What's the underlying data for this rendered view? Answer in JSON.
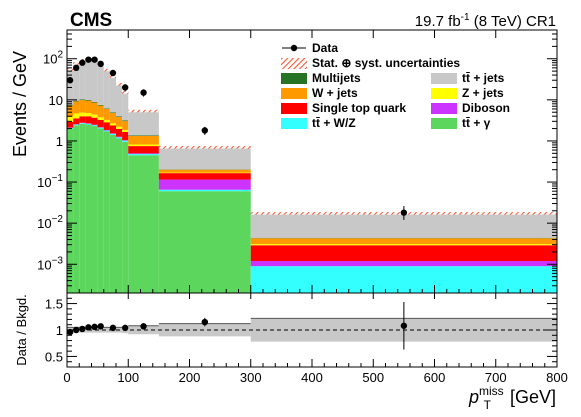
{
  "chart_data": {
    "type": "stacked-histogram-with-ratio",
    "experiment_label": "CMS",
    "lumi_label": "19.7 fb",
    "lumi_exponent": "-1",
    "lumi_suffix": " (8 TeV) CR1",
    "main_panel": {
      "ylabel": "Events / GeV",
      "yscale": "log",
      "ylim": [
        0.0002,
        500
      ],
      "y_tick_labels": [
        {
          "base": "10",
          "exp": "2",
          "value": 100
        },
        {
          "base": "10",
          "exp": "",
          "value": 10
        },
        {
          "base": "1",
          "exp": "",
          "value": 1
        },
        {
          "base": "10",
          "exp": "−1",
          "value": 0.1
        },
        {
          "base": "10",
          "exp": "−2",
          "value": 0.01
        },
        {
          "base": "10",
          "exp": "−3",
          "value": 0.001
        }
      ]
    },
    "x_axis": {
      "label_main": "p",
      "label_sub": "T",
      "label_sup": "miss",
      "label_unit": " [GeV]",
      "xlim": [
        0,
        800
      ],
      "ticks": [
        0,
        100,
        200,
        300,
        400,
        500,
        600,
        700,
        800
      ],
      "tick_labels": [
        "0",
        "100",
        "200",
        "300",
        "400",
        "500",
        "600",
        "700",
        "800"
      ]
    },
    "bin_edges": [
      0,
      10,
      20,
      30,
      40,
      50,
      60,
      70,
      80,
      90,
      100,
      150,
      300,
      800
    ],
    "backgrounds": [
      {
        "name": "tt̄ + γ",
        "color": "#5cd65c",
        "values": [
          2.0,
          2.4,
          2.6,
          2.5,
          2.3,
          2.0,
          1.7,
          1.4,
          1.15,
          0.95,
          0.45,
          0.06,
          0.0002
        ]
      },
      {
        "name": "tt̄ + W/Z",
        "color": "#33ffff",
        "values": [
          0.08,
          0.1,
          0.12,
          0.12,
          0.12,
          0.11,
          0.1,
          0.09,
          0.08,
          0.07,
          0.03,
          0.005,
          0.0007
        ]
      },
      {
        "name": "Diboson",
        "color": "#cc33ff",
        "values": [
          0.04,
          0.05,
          0.06,
          0.06,
          0.06,
          0.05,
          0.05,
          0.04,
          0.04,
          0.03,
          0.02,
          0.05,
          0.0003
        ]
      },
      {
        "name": "Single top quark",
        "color": "#ff0000",
        "values": [
          0.8,
          1.0,
          1.2,
          1.3,
          1.2,
          1.1,
          1.0,
          0.85,
          0.7,
          0.6,
          0.25,
          0.05,
          0.0017
        ]
      },
      {
        "name": "Z + jets",
        "color": "#ffff00",
        "values": [
          0.9,
          1.1,
          0.9,
          0.8,
          0.7,
          0.5,
          0.4,
          0.3,
          0.25,
          0.2,
          0.07,
          0.005,
          0.0002
        ]
      },
      {
        "name": "W + jets",
        "color": "#ff9900",
        "values": [
          3.5,
          4.5,
          5.0,
          4.8,
          4.2,
          3.5,
          2.8,
          2.1,
          1.6,
          1.2,
          0.5,
          0.03,
          0.0012
        ]
      },
      {
        "name": "Multijets",
        "color": "#267326",
        "values": [
          0.3,
          0.4,
          0.4,
          0.35,
          0.3,
          0.25,
          0.2,
          0.15,
          0.12,
          0.1,
          0.04,
          0.002,
          0.0001
        ]
      },
      {
        "name": "tt̄ + jets",
        "color": "#c8c8c8",
        "values": [
          47,
          67,
          82,
          88,
          82,
          65,
          47,
          32,
          20,
          12,
          4.0,
          0.5,
          0.013
        ]
      }
    ],
    "data_points": {
      "name": "Data",
      "x": [
        5,
        15,
        25,
        35,
        45,
        55,
        75,
        95,
        125,
        225,
        550
      ],
      "y": [
        30,
        60,
        80,
        95,
        95,
        75,
        45,
        20,
        15,
        1.8,
        0.018
      ],
      "y_err_low": [
        5,
        8,
        9,
        10,
        10,
        8,
        6,
        4,
        3,
        0.4,
        0.006
      ],
      "y_err_high": [
        5,
        8,
        9,
        10,
        10,
        8,
        6,
        4,
        3,
        0.4,
        0.008
      ]
    },
    "uncertainty_band": {
      "name": "Stat. ⊕ syst. uncertainties",
      "color": "#ff5533",
      "fraction": 0.07
    },
    "ratio_panel": {
      "ylabel": "Data / Bkgd.",
      "ylim": [
        0.3,
        1.7
      ],
      "ticks": [
        0.5,
        1,
        1.5
      ],
      "tick_labels": [
        "0.5",
        "1",
        "1.5"
      ],
      "reference_line": 1.0,
      "x": [
        5,
        15,
        25,
        35,
        45,
        55,
        75,
        95,
        125,
        225,
        550
      ],
      "values": [
        0.96,
        1.0,
        1.02,
        1.05,
        1.06,
        1.07,
        1.04,
        1.04,
        1.07,
        1.15,
        1.08
      ],
      "err_low": [
        0.05,
        0.05,
        0.04,
        0.04,
        0.04,
        0.04,
        0.04,
        0.05,
        0.06,
        0.08,
        0.45
      ],
      "err_high": [
        0.05,
        0.05,
        0.04,
        0.04,
        0.04,
        0.04,
        0.04,
        0.05,
        0.06,
        0.08,
        0.45
      ],
      "band_half_width": [
        0.05,
        0.05,
        0.05,
        0.05,
        0.05,
        0.05,
        0.05,
        0.05,
        0.05,
        0.06,
        0.08,
        0.12,
        0.22
      ]
    },
    "legend": {
      "placement": "top-right",
      "columns": [
        [
          {
            "label": "Data",
            "kind": "marker"
          },
          {
            "label": "Stat. ⊕ syst. uncertainties",
            "kind": "hatch",
            "color": "#ff5533"
          },
          {
            "label": "Multijets",
            "kind": "box",
            "color": "#267326"
          },
          {
            "label": "W + jets",
            "kind": "box",
            "color": "#ff9900"
          },
          {
            "label": "Single top quark",
            "kind": "box",
            "color": "#ff0000"
          },
          {
            "label": "tt̄ + W/Z",
            "kind": "box",
            "color": "#33ffff"
          }
        ],
        [
          {
            "label": "",
            "kind": "none"
          },
          {
            "label": "",
            "kind": "none"
          },
          {
            "label": "tt̄ + jets",
            "kind": "box",
            "color": "#c8c8c8"
          },
          {
            "label": "Z + jets",
            "kind": "box",
            "color": "#ffff00"
          },
          {
            "label": "Diboson",
            "kind": "box",
            "color": "#cc33ff"
          },
          {
            "label": "tt̄ + γ",
            "kind": "box",
            "color": "#5cd65c"
          }
        ]
      ]
    }
  }
}
